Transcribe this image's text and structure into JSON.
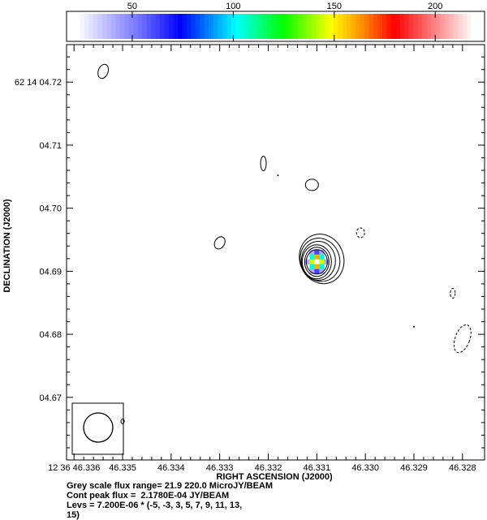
{
  "chart_data": {
    "type": "heatmap",
    "title": "",
    "xlabel": "RIGHT ASCENSION (J2000)",
    "ylabel": "DECLINATION (J2000)",
    "x_ticks": [
      "12 36 46.336",
      "46.335",
      "46.334",
      "46.333",
      "46.332",
      "46.331",
      "46.330",
      "46.329",
      "46.328"
    ],
    "y_ticks": [
      "62 14 04.72",
      "04.71",
      "04.70",
      "04.69",
      "04.68",
      "04.67"
    ],
    "colorbar": {
      "range": [
        21.9,
        220.0
      ],
      "ticks": [
        50,
        100,
        150,
        200
      ],
      "units": "MicroJY/BEAM"
    },
    "source_peak": {
      "ra_s": 46.331,
      "dec_s": 4.6915
    },
    "contour_levels": [
      -5,
      -3,
      3,
      5,
      7,
      9,
      11,
      13,
      15
    ],
    "contour_unit": 7.2e-06,
    "cont_peak_flux": 0.0002178,
    "grid": false
  },
  "caption": {
    "line1": "Grey scale flux range= 21.9 220.0 MicroJY/BEAM",
    "line2": "Cont peak flux =  2.1780E-04 JY/BEAM",
    "line3": "Levs = 7.200E-06 * (-5, -3, 3, 5, 7, 9, 11, 13,",
    "line4": "15)"
  },
  "colors": {
    "contour": "#000000",
    "palette": [
      "#ffffff",
      "#5a5aff",
      "#0000ff",
      "#00ffff",
      "#00ff00",
      "#ffff00",
      "#ff0000",
      "#ffffff"
    ]
  }
}
